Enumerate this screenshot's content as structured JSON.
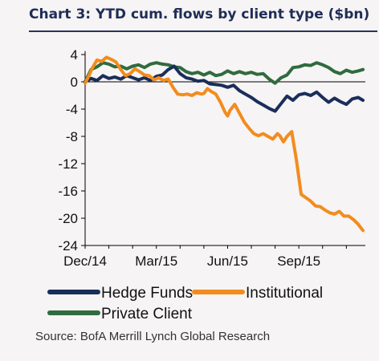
{
  "chart_data": {
    "type": "line",
    "title": "Chart 3: YTD cum. flows by client type ($bn)",
    "source": "Source: BofA Merrill Lynch Global Research",
    "xlabel": "",
    "ylabel": "",
    "x_tick_labels": [
      "Dec/14",
      "Mar/15",
      "Jun/15",
      "Sep/15"
    ],
    "x_tick_positions": [
      0,
      3,
      6,
      9
    ],
    "x_range": [
      0,
      11.8
    ],
    "y_ticks": [
      4,
      0,
      -4,
      -8,
      -12,
      -16,
      -20,
      -24
    ],
    "ylim": [
      -24,
      4.5
    ],
    "grid": false,
    "legend_position": "bottom",
    "series": [
      {
        "name": "Hedge Funds",
        "color": "#1a2e5a",
        "x": [
          0,
          0.25,
          0.5,
          0.75,
          1.0,
          1.25,
          1.5,
          1.75,
          2.0,
          2.25,
          2.5,
          2.75,
          3.0,
          3.25,
          3.5,
          3.75,
          4.0,
          4.25,
          4.5,
          4.75,
          5.0,
          5.25,
          5.5,
          5.75,
          6.0,
          6.25,
          6.5,
          6.75,
          7.0,
          7.25,
          7.5,
          7.75,
          8.0,
          8.25,
          8.5,
          8.75,
          9.0,
          9.25,
          9.5,
          9.75,
          10.0,
          10.25,
          10.5,
          10.75,
          11.0,
          11.25,
          11.5,
          11.7
        ],
        "values": [
          0,
          0.5,
          0.2,
          0.9,
          0.5,
          0.7,
          0.4,
          0.9,
          0.6,
          0.3,
          0.6,
          0.2,
          0.8,
          1.0,
          1.8,
          2.3,
          1.2,
          0.6,
          0.4,
          0.1,
          0.2,
          -0.3,
          -0.4,
          -0.5,
          -0.8,
          -0.5,
          -1.3,
          -1.8,
          -2.3,
          -2.9,
          -3.4,
          -3.9,
          -4.3,
          -3.2,
          -2.1,
          -2.7,
          -1.9,
          -1.7,
          -2.0,
          -1.5,
          -2.3,
          -3.0,
          -2.4,
          -2.9,
          -3.3,
          -2.5,
          -2.3,
          -2.7
        ]
      },
      {
        "name": "Institutional",
        "color": "#f28c1e",
        "x": [
          0,
          0.15,
          0.3,
          0.5,
          0.7,
          0.9,
          1.1,
          1.3,
          1.5,
          1.7,
          1.9,
          2.1,
          2.3,
          2.5,
          2.7,
          2.9,
          3.1,
          3.3,
          3.5,
          3.7,
          3.9,
          4.1,
          4.3,
          4.5,
          4.7,
          4.9,
          5.0,
          5.15,
          5.3,
          5.5,
          5.7,
          5.9,
          6.0,
          6.1,
          6.3,
          6.5,
          6.7,
          6.9,
          7.1,
          7.3,
          7.5,
          7.7,
          7.9,
          8.1,
          8.2,
          8.35,
          8.5,
          8.7,
          8.9,
          9.1,
          9.3,
          9.5,
          9.7,
          9.9,
          10.1,
          10.3,
          10.5,
          10.7,
          10.9,
          11.1,
          11.3,
          11.5,
          11.7
        ],
        "values": [
          -0.2,
          0.8,
          2.0,
          3.2,
          3.0,
          3.6,
          3.3,
          2.9,
          1.8,
          0.9,
          1.2,
          1.9,
          1.5,
          1.0,
          0.9,
          0.3,
          0.6,
          0.2,
          0.4,
          -0.8,
          -1.8,
          -1.9,
          -1.8,
          -2.0,
          -1.6,
          -1.8,
          -1.7,
          -1.0,
          -1.4,
          -1.8,
          -3.0,
          -4.5,
          -5.0,
          -4.2,
          -3.3,
          -4.6,
          -5.9,
          -6.8,
          -7.6,
          -7.9,
          -7.6,
          -8.0,
          -8.4,
          -7.6,
          -7.9,
          -8.8,
          -8.0,
          -7.3,
          -11.5,
          -16.5,
          -17.0,
          -17.5,
          -18.2,
          -18.3,
          -18.8,
          -19.2,
          -19.4,
          -19.0,
          -19.7,
          -19.7,
          -20.2,
          -20.9,
          -21.8
        ]
      },
      {
        "name": "Private Client",
        "color": "#2f6b3e",
        "x": [
          0,
          0.25,
          0.5,
          0.75,
          1.0,
          1.25,
          1.5,
          1.75,
          2.0,
          2.25,
          2.5,
          2.75,
          3.0,
          3.25,
          3.5,
          3.75,
          4.0,
          4.25,
          4.5,
          4.75,
          5.0,
          5.25,
          5.5,
          5.75,
          6.0,
          6.25,
          6.5,
          6.75,
          7.0,
          7.25,
          7.5,
          7.75,
          8.0,
          8.25,
          8.5,
          8.75,
          9.0,
          9.25,
          9.5,
          9.75,
          10.0,
          10.25,
          10.5,
          10.75,
          11.0,
          11.25,
          11.5,
          11.7
        ],
        "values": [
          0,
          1.8,
          2.2,
          2.8,
          2.6,
          2.2,
          2.3,
          1.9,
          2.3,
          2.5,
          2.1,
          2.6,
          2.8,
          2.6,
          2.5,
          2.2,
          2.1,
          1.5,
          1.2,
          1.4,
          1.0,
          1.4,
          0.9,
          1.1,
          1.6,
          1.2,
          1.5,
          1.2,
          1.4,
          1.1,
          1.2,
          0.4,
          -0.2,
          0.6,
          1.0,
          2.1,
          2.2,
          2.5,
          2.4,
          2.8,
          2.5,
          2.1,
          1.5,
          1.2,
          1.7,
          1.4,
          1.6,
          1.8
        ]
      }
    ]
  }
}
